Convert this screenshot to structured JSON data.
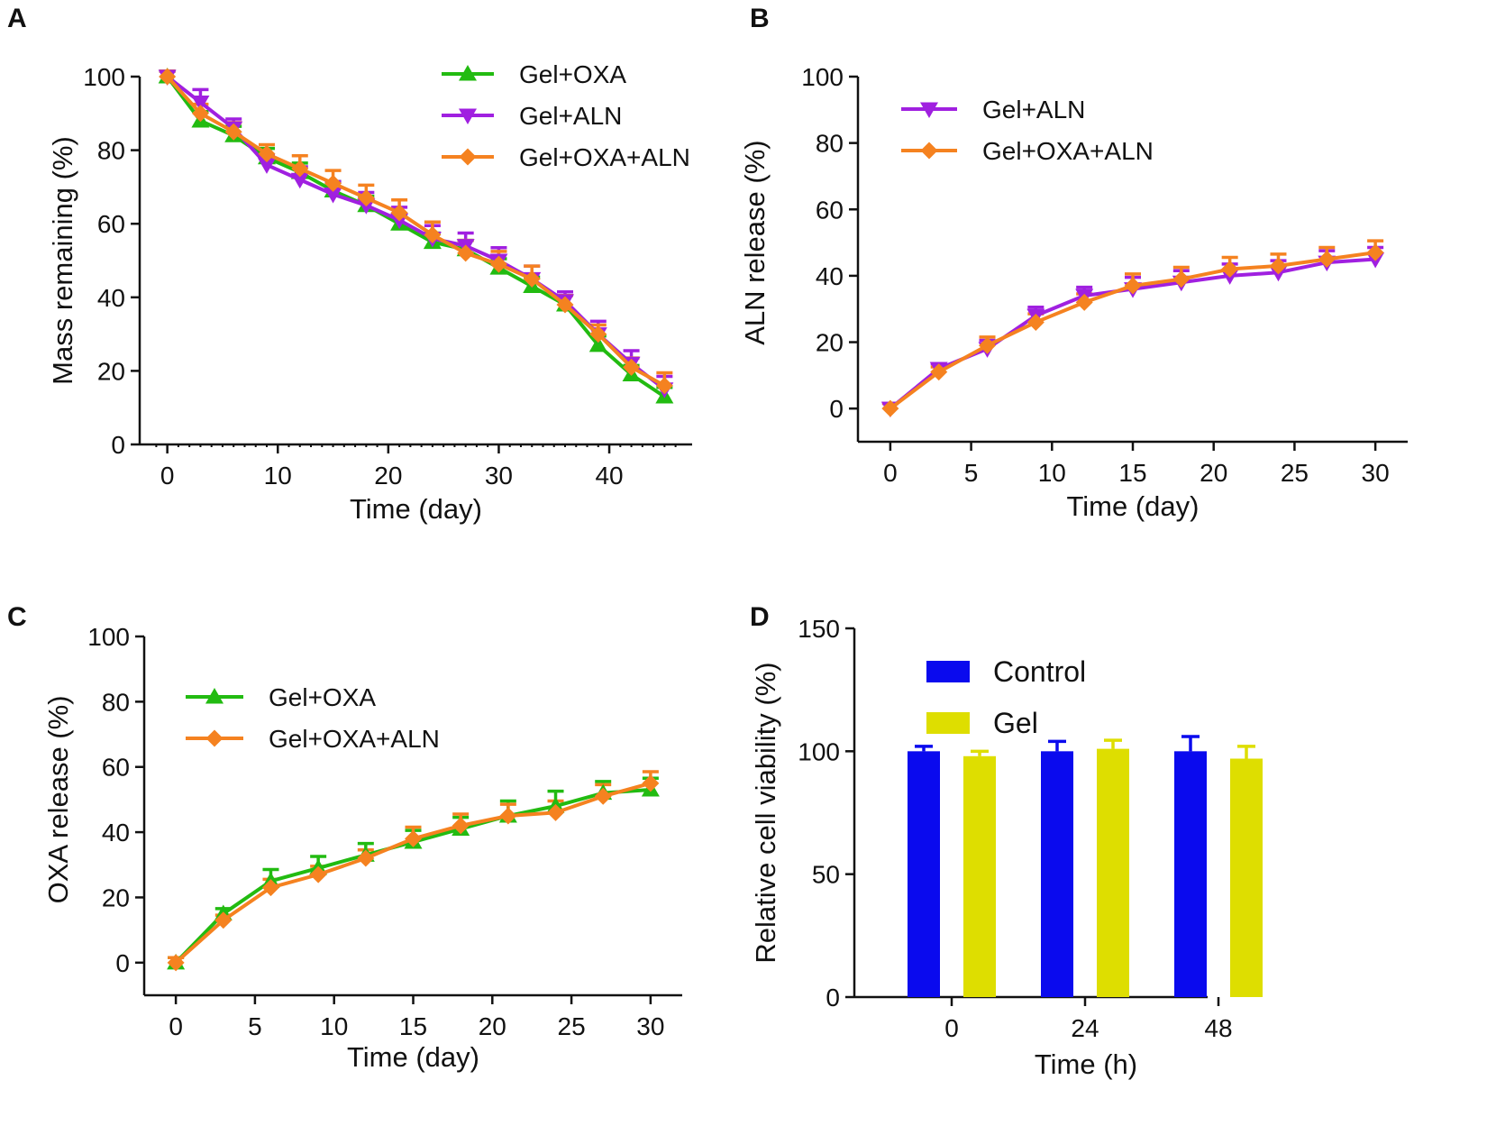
{
  "colors": {
    "Gel+OXA": "#22bb11",
    "Gel+ALN": "#a020e0",
    "Gel+OXA+ALN": "#f58220",
    "Control": "#0a0aee",
    "Gel": "#dede00"
  },
  "chart_data": [
    {
      "panel": "A",
      "type": "line",
      "xlabel": "Time (day)",
      "ylabel": "Mass remaining (%)",
      "xlim": [
        -2.5,
        47.5
      ],
      "ylim": [
        0,
        100
      ],
      "xticks": [
        0,
        10,
        20,
        30,
        40
      ],
      "yticks": [
        0,
        20,
        40,
        60,
        80,
        100
      ],
      "legend_position": "top-right",
      "series": [
        {
          "name": "Gel+OXA",
          "marker": "triangle-up",
          "x": [
            0,
            3,
            6,
            9,
            12,
            15,
            18,
            21,
            24,
            27,
            30,
            33,
            36,
            39,
            42,
            45
          ],
          "values": [
            100,
            88,
            84,
            78,
            74,
            69,
            65,
            60,
            55,
            53,
            48,
            43,
            38,
            27,
            19,
            13
          ],
          "errors": [
            1,
            2,
            2,
            2,
            2,
            2,
            2,
            2,
            2,
            2,
            2,
            2,
            2,
            2,
            2,
            2
          ]
        },
        {
          "name": "Gel+ALN",
          "marker": "triangle-down",
          "x": [
            0,
            3,
            6,
            9,
            12,
            15,
            18,
            21,
            24,
            27,
            30,
            33,
            36,
            39,
            42,
            45
          ],
          "values": [
            100,
            93,
            86,
            76,
            72,
            68,
            65,
            61,
            56,
            54,
            50,
            45,
            39,
            30,
            22,
            15
          ],
          "errors": [
            1,
            3,
            2,
            2,
            3,
            3,
            3,
            3,
            3,
            3,
            3,
            3,
            2,
            3,
            3,
            3
          ]
        },
        {
          "name": "Gel+OXA+ALN",
          "marker": "diamond",
          "x": [
            0,
            3,
            6,
            9,
            12,
            15,
            18,
            21,
            24,
            27,
            30,
            33,
            36,
            39,
            42,
            45
          ],
          "values": [
            100,
            90,
            85,
            79,
            75,
            71,
            67,
            63,
            57,
            52,
            49,
            45,
            38,
            30,
            21,
            16
          ],
          "errors": [
            1,
            2,
            2,
            2,
            3,
            3,
            3,
            3,
            3,
            3,
            3,
            3,
            2,
            2,
            2,
            3
          ]
        }
      ]
    },
    {
      "panel": "B",
      "type": "line",
      "xlabel": "Time (day)",
      "ylabel": "ALN release (%)",
      "xlim": [
        -2,
        32
      ],
      "ylim": [
        -10,
        100
      ],
      "xticks": [
        0,
        5,
        10,
        15,
        20,
        25,
        30
      ],
      "yticks": [
        0,
        20,
        40,
        60,
        80,
        100
      ],
      "legend_position": "top-left",
      "series": [
        {
          "name": "Gel+ALN",
          "marker": "triangle-down",
          "x": [
            0,
            3,
            6,
            9,
            12,
            15,
            18,
            21,
            24,
            27,
            30
          ],
          "values": [
            0,
            12,
            18,
            28,
            34,
            36,
            38,
            40,
            41,
            44,
            45
          ],
          "errors": [
            1,
            1,
            2,
            2,
            2,
            3,
            3,
            3,
            3,
            3,
            3
          ]
        },
        {
          "name": "Gel+OXA+ALN",
          "marker": "diamond",
          "x": [
            0,
            3,
            6,
            9,
            12,
            15,
            18,
            21,
            24,
            27,
            30
          ],
          "values": [
            0,
            11,
            19,
            26,
            32,
            37,
            39,
            42,
            43,
            45,
            47
          ],
          "errors": [
            1,
            1,
            2,
            2,
            2,
            3,
            3,
            3,
            3,
            3,
            3
          ]
        }
      ]
    },
    {
      "panel": "C",
      "type": "line",
      "xlabel": "Time (day)",
      "ylabel": "OXA release (%)",
      "xlim": [
        -2,
        32
      ],
      "ylim": [
        -10,
        100
      ],
      "xticks": [
        0,
        5,
        10,
        15,
        20,
        25,
        30
      ],
      "yticks": [
        0,
        20,
        40,
        60,
        80,
        100
      ],
      "legend_position": "top-left",
      "series": [
        {
          "name": "Gel+OXA",
          "marker": "triangle-up",
          "x": [
            0,
            3,
            6,
            9,
            12,
            15,
            18,
            21,
            24,
            27,
            30
          ],
          "values": [
            0,
            15,
            25,
            29,
            33,
            37,
            41,
            45,
            48,
            52,
            53
          ],
          "errors": [
            1,
            1,
            3,
            3,
            3,
            3,
            3,
            4,
            4,
            3,
            3
          ]
        },
        {
          "name": "Gel+OXA+ALN",
          "marker": "diamond",
          "x": [
            0,
            3,
            6,
            9,
            12,
            15,
            18,
            21,
            24,
            27,
            30
          ],
          "values": [
            0,
            13,
            23,
            27,
            32,
            38,
            42,
            45,
            46,
            51,
            55
          ],
          "errors": [
            1,
            1,
            2,
            2,
            2,
            3,
            3,
            3,
            3,
            3,
            3
          ]
        }
      ]
    },
    {
      "panel": "D",
      "type": "bar",
      "xlabel": "Time (h)",
      "ylabel": "Relative cell viability (%)",
      "ylim": [
        0,
        150
      ],
      "yticks": [
        0,
        50,
        100,
        150
      ],
      "categories": [
        "0",
        "24",
        "48"
      ],
      "legend_position": "top-left",
      "series": [
        {
          "name": "Control",
          "values": [
            100,
            100,
            100
          ],
          "errors": [
            2,
            4,
            6
          ]
        },
        {
          "name": "Gel",
          "values": [
            98,
            101,
            97
          ],
          "errors": [
            2,
            3.5,
            5
          ]
        }
      ]
    }
  ]
}
